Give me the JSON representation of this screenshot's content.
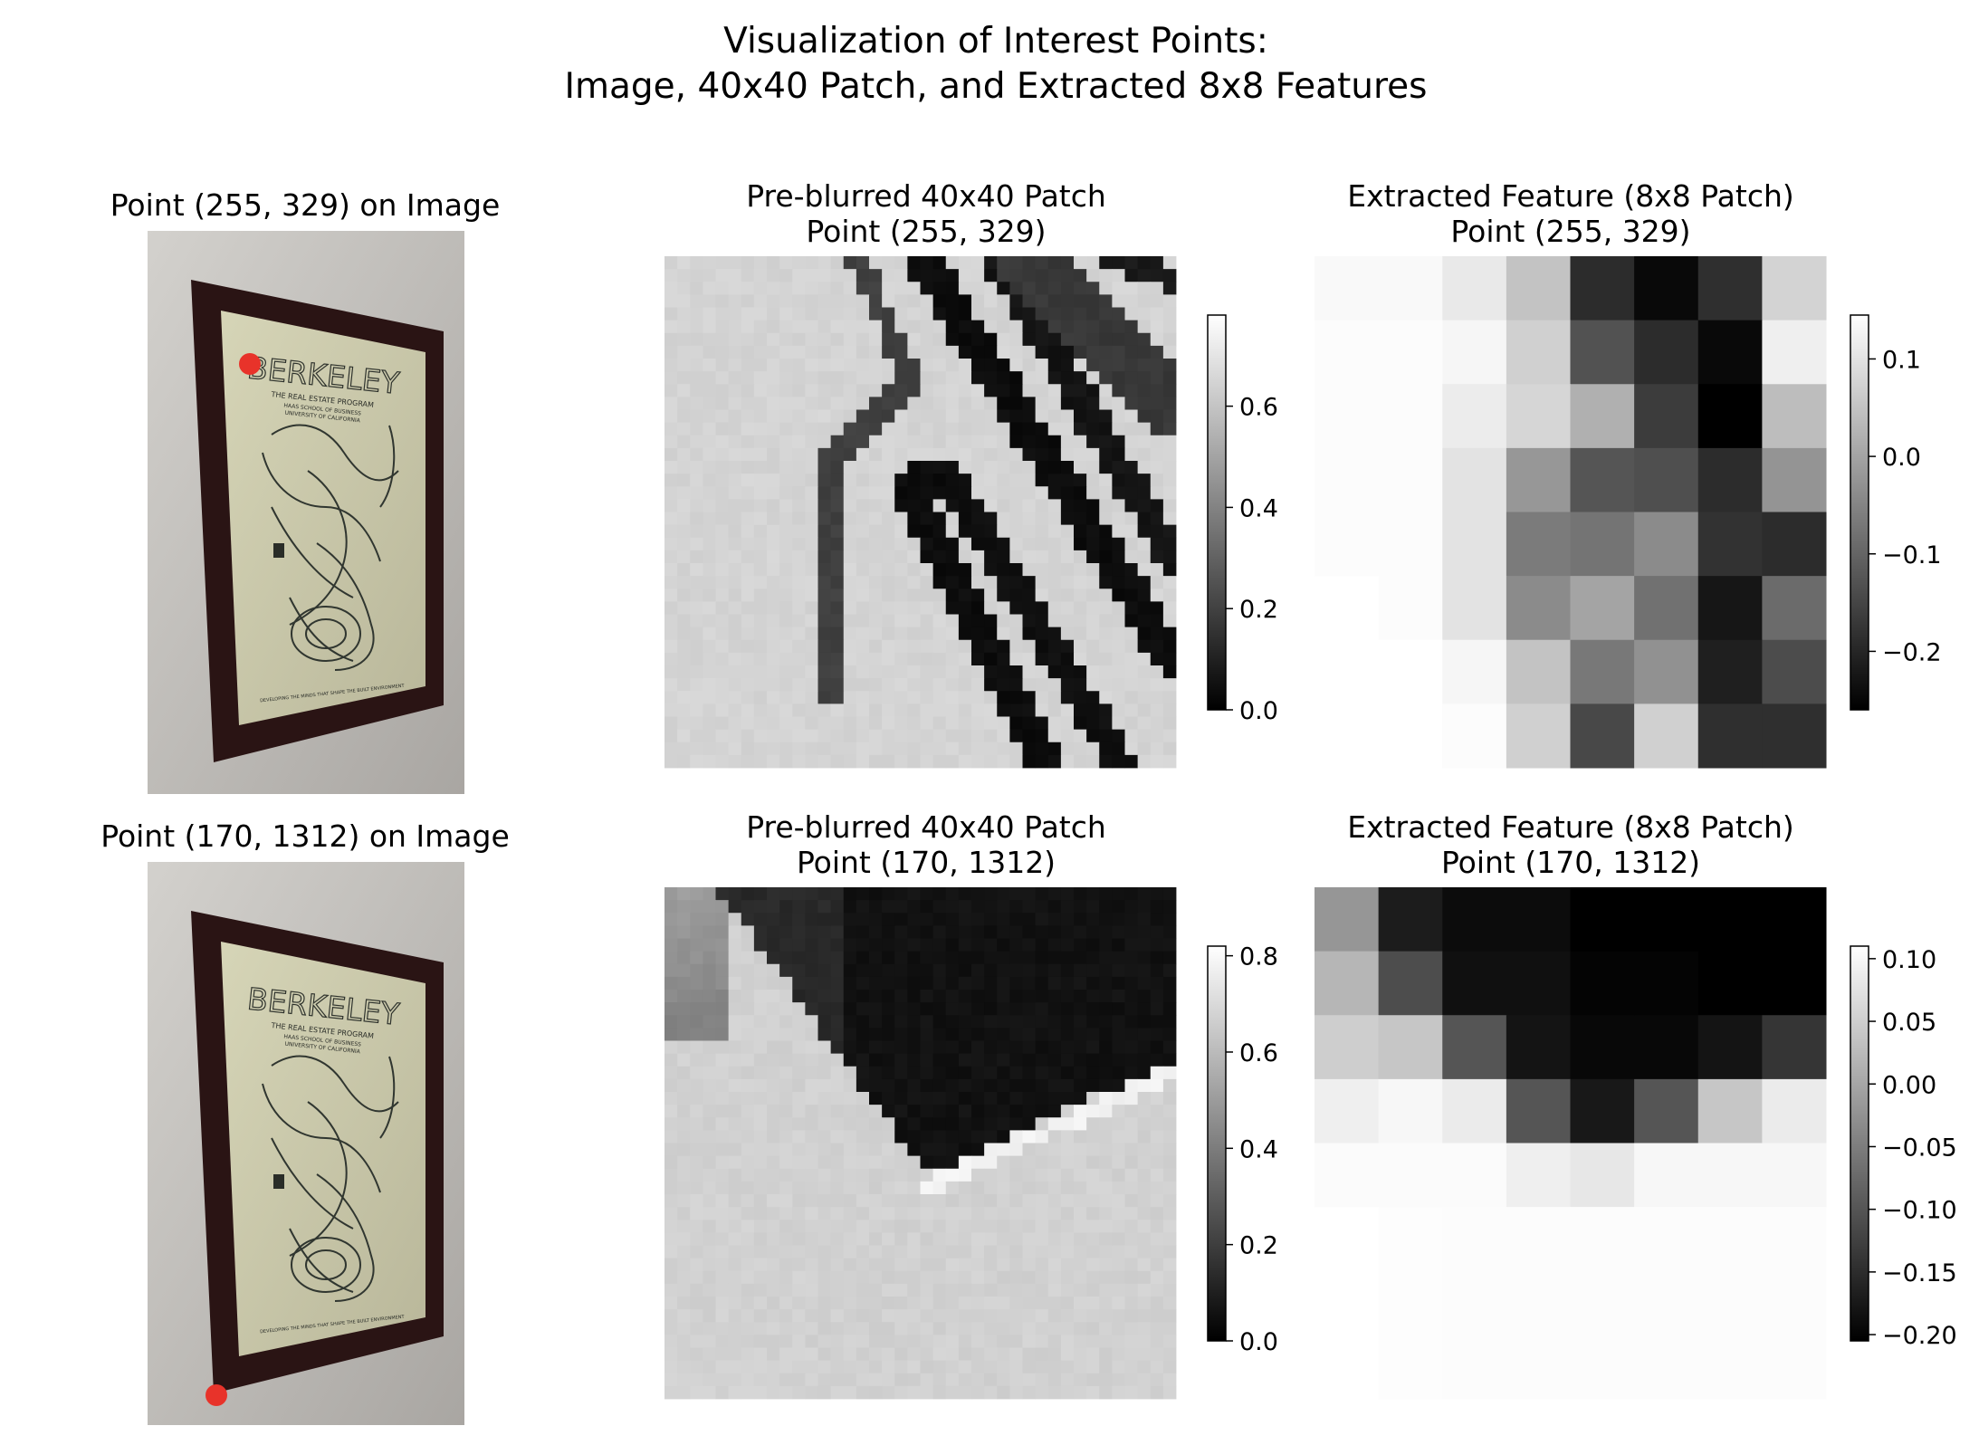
{
  "figure": {
    "title_line1": "Visualization of Interest Points:",
    "title_line2": "Image, 40x40 Patch, and Extracted 8x8 Features"
  },
  "colors": {
    "marker": "#e8332a",
    "wall": "#c6c3bf",
    "frame": "#2a1414",
    "poster": "#c9c7a8"
  },
  "rows": [
    {
      "point": "(255, 329)",
      "image_title": "Point (255, 329) on Image",
      "poster_text": {
        "headline": "BERKELEY",
        "line1": "THE REAL ESTATE PROGRAM",
        "line2": "HAAS SCHOOL OF BUSINESS",
        "line3": "UNIVERSITY OF CALIFORNIA",
        "footer": "DEVELOPING THE MINDS THAT SHAPE THE BUILT ENVIRONMENT"
      },
      "patch_title_line1": "Pre-blurred 40x40 Patch",
      "patch_title_line2": "Point (255, 329)",
      "patch_colorbar": {
        "range": [
          0.0,
          0.78
        ],
        "ticks": [
          "0.0",
          "0.2",
          "0.4",
          "0.6"
        ],
        "tick_values": [
          0.0,
          0.2,
          0.4,
          0.6
        ]
      },
      "feature_title_line1": "Extracted Feature (8x8 Patch)",
      "feature_title_line2": "Point (255, 329)",
      "feature_colorbar": {
        "range": [
          -0.26,
          0.145
        ],
        "ticks": [
          "0.1",
          "0.0",
          "−0.1",
          "−0.2"
        ],
        "tick_values": [
          0.1,
          0.0,
          -0.1,
          -0.2
        ]
      }
    },
    {
      "point": "(170, 1312)",
      "image_title": "Point (170, 1312) on Image",
      "poster_text": {
        "headline": "BERKELEY",
        "line1": "THE REAL ESTATE PROGRAM",
        "line2": "HAAS SCHOOL OF BUSINESS",
        "line3": "UNIVERSITY OF CALIFORNIA",
        "footer": "DEVELOPING THE MINDS THAT SHAPE THE BUILT ENVIRONMENT"
      },
      "patch_title_line1": "Pre-blurred 40x40 Patch",
      "patch_title_line2": "Point (170, 1312)",
      "patch_colorbar": {
        "range": [
          0.0,
          0.82
        ],
        "ticks": [
          "0.8",
          "0.6",
          "0.4",
          "0.2",
          "0.0"
        ],
        "tick_values": [
          0.8,
          0.6,
          0.4,
          0.2,
          0.0
        ]
      },
      "feature_title_line1": "Extracted Feature (8x8 Patch)",
      "feature_title_line2": "Point (170, 1312)",
      "feature_colorbar": {
        "range": [
          -0.205,
          0.11
        ],
        "ticks": [
          "0.10",
          "0.05",
          "0.00",
          "−0.05",
          "−0.10",
          "−0.15",
          "−0.20"
        ],
        "tick_values": [
          0.1,
          0.05,
          0.0,
          -0.05,
          -0.1,
          -0.15,
          -0.2
        ]
      }
    }
  ],
  "chart_data": [
    {
      "type": "heatmap",
      "title": "Extracted Feature (8x8 Patch) Point (255, 329)",
      "colormap": "gray",
      "values": [
        [
          0.135,
          0.135,
          0.11,
          0.05,
          -0.19,
          -0.245,
          -0.185,
          0.075
        ],
        [
          0.14,
          0.14,
          0.13,
          0.07,
          -0.13,
          -0.19,
          -0.245,
          0.12
        ],
        [
          0.14,
          0.14,
          0.115,
          0.08,
          0.02,
          -0.165,
          -0.26,
          0.04
        ],
        [
          0.14,
          0.14,
          0.1,
          -0.02,
          -0.125,
          -0.135,
          -0.19,
          -0.025
        ],
        [
          0.14,
          0.14,
          0.1,
          -0.065,
          -0.075,
          -0.04,
          -0.18,
          -0.19
        ],
        [
          0.145,
          0.14,
          0.1,
          -0.04,
          0.0,
          -0.08,
          -0.225,
          -0.09
        ],
        [
          0.145,
          0.145,
          0.13,
          0.05,
          -0.07,
          -0.03,
          -0.21,
          -0.14
        ],
        [
          0.145,
          0.145,
          0.14,
          0.07,
          -0.145,
          0.07,
          -0.185,
          -0.185
        ]
      ]
    },
    {
      "type": "heatmap",
      "title": "Extracted Feature (170, 1312)",
      "colormap": "gray",
      "values": [
        [
          -0.02,
          -0.17,
          -0.19,
          -0.19,
          -0.205,
          -0.205,
          -0.205,
          -0.205
        ],
        [
          0.02,
          -0.11,
          -0.185,
          -0.185,
          -0.2,
          -0.2,
          -0.205,
          -0.205
        ],
        [
          0.05,
          0.04,
          -0.1,
          -0.18,
          -0.195,
          -0.195,
          -0.18,
          -0.14
        ],
        [
          0.09,
          0.1,
          0.085,
          -0.1,
          -0.175,
          -0.1,
          0.04,
          0.085
        ],
        [
          0.105,
          0.105,
          0.105,
          0.09,
          0.08,
          0.1,
          0.1,
          0.1
        ],
        [
          0.11,
          0.108,
          0.106,
          0.106,
          0.106,
          0.106,
          0.106,
          0.106
        ],
        [
          0.11,
          0.108,
          0.106,
          0.106,
          0.106,
          0.106,
          0.106,
          0.106
        ],
        [
          0.11,
          0.108,
          0.106,
          0.106,
          0.106,
          0.106,
          0.106,
          0.106
        ]
      ]
    }
  ]
}
